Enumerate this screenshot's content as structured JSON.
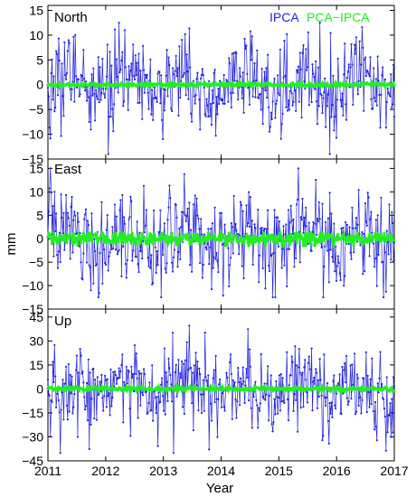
{
  "chart_data": {
    "type": "line",
    "xlabel": "Year",
    "ylabel": "mm",
    "xlim": [
      2011,
      2017
    ],
    "x_ticks": [
      "2011",
      "2012",
      "2013",
      "2014",
      "2015",
      "2016",
      "2017"
    ],
    "legend": [
      {
        "name": "IPCA",
        "color": "#2222dd"
      },
      {
        "name": "PCA−IPCA",
        "color": "#22ee22"
      }
    ],
    "legend_placement": "top-right",
    "grid": false,
    "panels": [
      {
        "label": "North",
        "ylim": [
          -15,
          16
        ],
        "y_ticks": [
          "15",
          "10",
          "5",
          "0",
          "−5",
          "−10",
          "−15"
        ],
        "tick_values": [
          15,
          10,
          5,
          0,
          -5,
          -10,
          -15
        ],
        "ipca_range": [
          -14,
          12.5
        ],
        "ipca_std": 4.5,
        "pca_ipca_range": [
          -0.4,
          0.4
        ]
      },
      {
        "label": "East",
        "ylim": [
          -15,
          17
        ],
        "y_ticks": [
          "15",
          "10",
          "5",
          "0",
          "−5",
          "−10",
          "−15"
        ],
        "tick_values": [
          15,
          10,
          5,
          0,
          -5,
          -10,
          -15
        ],
        "ipca_range": [
          -12.5,
          15
        ],
        "ipca_std": 5,
        "pca_ipca_range": [
          -1.5,
          1.2
        ]
      },
      {
        "label": "Up",
        "ylim": [
          -45,
          50
        ],
        "y_ticks": [
          "45",
          "30",
          "15",
          "0",
          "−15",
          "−30",
          "−45"
        ],
        "tick_values": [
          45,
          30,
          15,
          0,
          -15,
          -30,
          -45
        ],
        "ipca_range": [
          -40,
          43
        ],
        "ipca_std": 13,
        "pca_ipca_range": [
          -1.5,
          1.5
        ]
      }
    ]
  }
}
